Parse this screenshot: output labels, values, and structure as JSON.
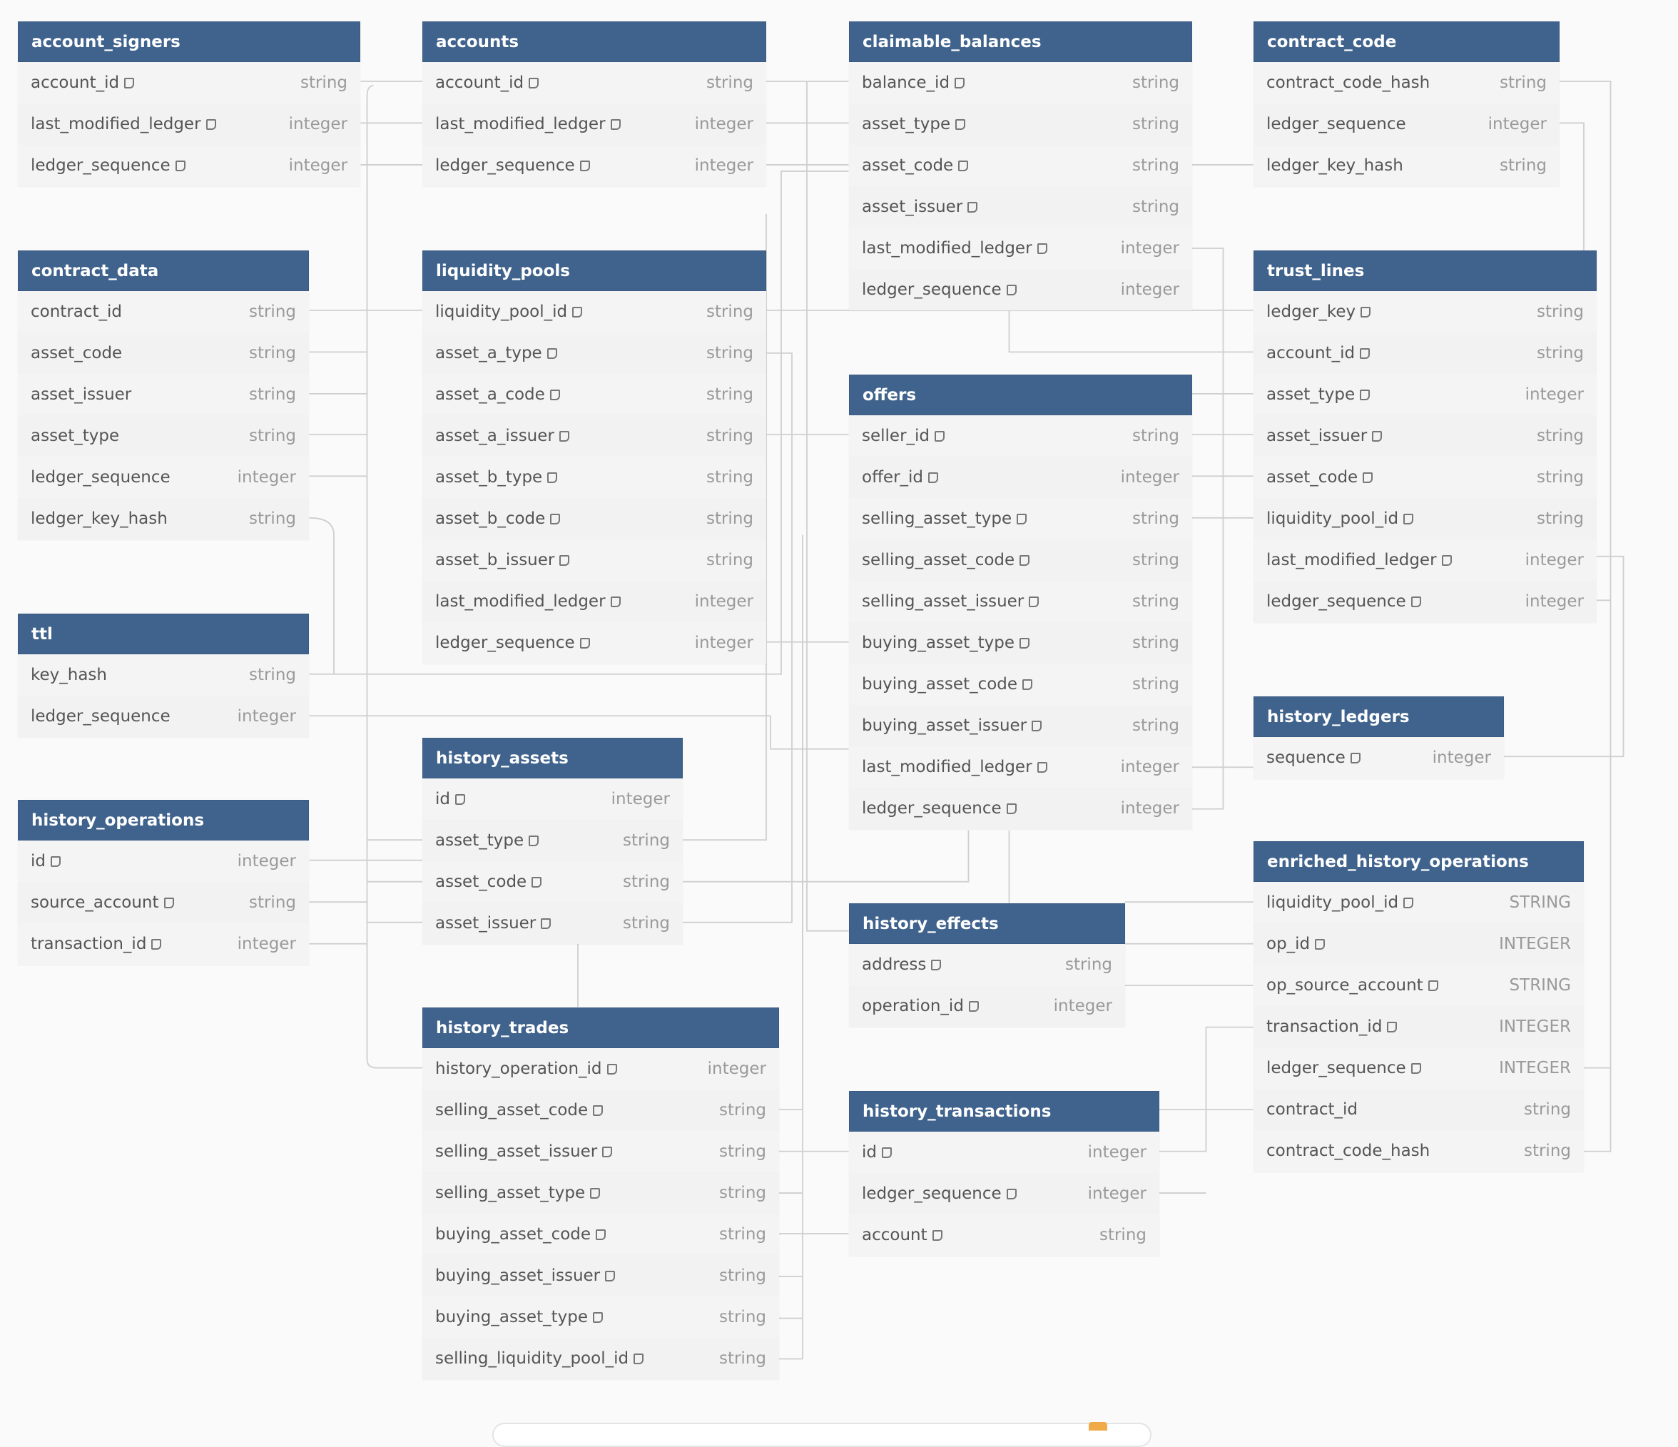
{
  "colors": {
    "header": "#40638d",
    "background": "#fafafa",
    "row": "#f2f2f2",
    "connector": "#cfcfcf",
    "badge": "#f0ab48"
  },
  "icons": {
    "note": "note-icon"
  },
  "tables": [
    {
      "name": "account_signers",
      "columns": [
        [
          "account_id",
          "string",
          true
        ],
        [
          "last_modified_ledger",
          "integer",
          true
        ],
        [
          "ledger_sequence",
          "integer",
          true
        ]
      ]
    },
    {
      "name": "accounts",
      "columns": [
        [
          "account_id",
          "string",
          true
        ],
        [
          "last_modified_ledger",
          "integer",
          true
        ],
        [
          "ledger_sequence",
          "integer",
          true
        ]
      ]
    },
    {
      "name": "claimable_balances",
      "columns": [
        [
          "balance_id",
          "string",
          true
        ],
        [
          "asset_type",
          "string",
          true
        ],
        [
          "asset_code",
          "string",
          true
        ],
        [
          "asset_issuer",
          "string",
          true
        ],
        [
          "last_modified_ledger",
          "integer",
          true
        ],
        [
          "ledger_sequence",
          "integer",
          true
        ]
      ]
    },
    {
      "name": "contract_code",
      "columns": [
        [
          "contract_code_hash",
          "string",
          false
        ],
        [
          "ledger_sequence",
          "integer",
          false
        ],
        [
          "ledger_key_hash",
          "string",
          false
        ]
      ]
    },
    {
      "name": "contract_data",
      "columns": [
        [
          "contract_id",
          "string",
          false
        ],
        [
          "asset_code",
          "string",
          false
        ],
        [
          "asset_issuer",
          "string",
          false
        ],
        [
          "asset_type",
          "string",
          false
        ],
        [
          "ledger_sequence",
          "integer",
          false
        ],
        [
          "ledger_key_hash",
          "string",
          false
        ]
      ]
    },
    {
      "name": "liquidity_pools",
      "columns": [
        [
          "liquidity_pool_id",
          "string",
          true
        ],
        [
          "asset_a_type",
          "string",
          true
        ],
        [
          "asset_a_code",
          "string",
          true
        ],
        [
          "asset_a_issuer",
          "string",
          true
        ],
        [
          "asset_b_type",
          "string",
          true
        ],
        [
          "asset_b_code",
          "string",
          true
        ],
        [
          "asset_b_issuer",
          "string",
          true
        ],
        [
          "last_modified_ledger",
          "integer",
          true
        ],
        [
          "ledger_sequence",
          "integer",
          true
        ]
      ]
    },
    {
      "name": "offers",
      "columns": [
        [
          "seller_id",
          "string",
          true
        ],
        [
          "offer_id",
          "integer",
          true
        ],
        [
          "selling_asset_type",
          "string",
          true
        ],
        [
          "selling_asset_code",
          "string",
          true
        ],
        [
          "selling_asset_issuer",
          "string",
          true
        ],
        [
          "buying_asset_type",
          "string",
          true
        ],
        [
          "buying_asset_code",
          "string",
          true
        ],
        [
          "buying_asset_issuer",
          "string",
          true
        ],
        [
          "last_modified_ledger",
          "integer",
          true
        ],
        [
          "ledger_sequence",
          "integer",
          true
        ]
      ]
    },
    {
      "name": "trust_lines",
      "columns": [
        [
          "ledger_key",
          "string",
          true
        ],
        [
          "account_id",
          "string",
          true
        ],
        [
          "asset_type",
          "integer",
          true
        ],
        [
          "asset_issuer",
          "string",
          true
        ],
        [
          "asset_code",
          "string",
          true
        ],
        [
          "liquidity_pool_id",
          "string",
          true
        ],
        [
          "last_modified_ledger",
          "integer",
          true
        ],
        [
          "ledger_sequence",
          "integer",
          true
        ]
      ]
    },
    {
      "name": "ttl",
      "columns": [
        [
          "key_hash",
          "string",
          false
        ],
        [
          "ledger_sequence",
          "integer",
          false
        ]
      ]
    },
    {
      "name": "history_ledgers",
      "columns": [
        [
          "sequence",
          "integer",
          true
        ]
      ]
    },
    {
      "name": "history_assets",
      "columns": [
        [
          "id",
          "integer",
          true
        ],
        [
          "asset_type",
          "string",
          true
        ],
        [
          "asset_code",
          "string",
          true
        ],
        [
          "asset_issuer",
          "string",
          true
        ]
      ]
    },
    {
      "name": "history_operations",
      "columns": [
        [
          "id",
          "integer",
          true
        ],
        [
          "source_account",
          "string",
          true
        ],
        [
          "transaction_id",
          "integer",
          true
        ]
      ]
    },
    {
      "name": "enriched_history_operations",
      "columns": [
        [
          "liquidity_pool_id",
          "STRING",
          true
        ],
        [
          "op_id",
          "INTEGER",
          true
        ],
        [
          "op_source_account",
          "STRING",
          true
        ],
        [
          "transaction_id",
          "INTEGER",
          true
        ],
        [
          "ledger_sequence",
          "INTEGER",
          true
        ],
        [
          "contract_id",
          "string",
          false
        ],
        [
          "contract_code_hash",
          "string",
          false
        ]
      ]
    },
    {
      "name": "history_effects",
      "columns": [
        [
          "address",
          "string",
          true
        ],
        [
          "operation_id",
          "integer",
          true
        ]
      ]
    },
    {
      "name": "history_trades",
      "columns": [
        [
          "history_operation_id",
          "integer",
          true
        ],
        [
          "selling_asset_code",
          "string",
          true
        ],
        [
          "selling_asset_issuer",
          "string",
          true
        ],
        [
          "selling_asset_type",
          "string",
          true
        ],
        [
          "buying_asset_code",
          "string",
          true
        ],
        [
          "buying_asset_issuer",
          "string",
          true
        ],
        [
          "buying_asset_type",
          "string",
          true
        ],
        [
          "selling_liquidity_pool_id",
          "string",
          true
        ]
      ]
    },
    {
      "name": "history_transactions",
      "columns": [
        [
          "id",
          "integer",
          true
        ],
        [
          "ledger_sequence",
          "integer",
          true
        ],
        [
          "account",
          "string",
          true
        ]
      ]
    }
  ]
}
